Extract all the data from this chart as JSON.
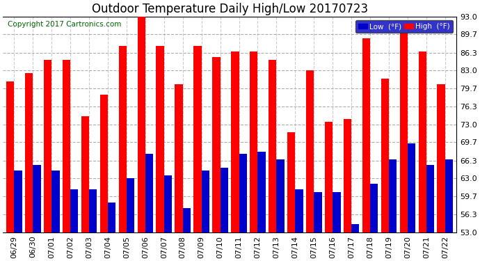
{
  "title": "Outdoor Temperature Daily High/Low 20170723",
  "copyright": "Copyright 2017 Cartronics.com",
  "dates": [
    "06/29",
    "06/30",
    "07/01",
    "07/02",
    "07/03",
    "07/04",
    "07/05",
    "07/06",
    "07/07",
    "07/08",
    "07/09",
    "07/10",
    "07/11",
    "07/12",
    "07/13",
    "07/14",
    "07/15",
    "07/16",
    "07/17",
    "07/18",
    "07/19",
    "07/20",
    "07/21",
    "07/22"
  ],
  "highs": [
    81.0,
    82.5,
    85.0,
    85.0,
    74.5,
    78.5,
    87.5,
    93.5,
    87.5,
    80.5,
    87.5,
    85.5,
    86.5,
    86.5,
    85.0,
    71.5,
    83.0,
    73.5,
    74.0,
    89.0,
    81.5,
    90.0,
    86.5,
    80.5
  ],
  "lows": [
    64.5,
    65.5,
    64.5,
    61.0,
    61.0,
    58.5,
    63.0,
    67.5,
    63.5,
    57.5,
    64.5,
    65.0,
    67.5,
    68.0,
    66.5,
    61.0,
    60.5,
    60.5,
    54.5,
    62.0,
    66.5,
    69.5,
    65.5,
    66.5
  ],
  "ylim": [
    53.0,
    93.0
  ],
  "yticks": [
    53.0,
    56.3,
    59.7,
    63.0,
    66.3,
    69.7,
    73.0,
    76.3,
    79.7,
    83.0,
    86.3,
    89.7,
    93.0
  ],
  "high_color": "#ff0000",
  "low_color": "#0000cc",
  "background_color": "#ffffff",
  "plot_bg_color": "#ffffff",
  "grid_color": "#999999",
  "title_fontsize": 12,
  "copyright_fontsize": 7.5,
  "tick_fontsize": 8,
  "bar_width": 0.42
}
